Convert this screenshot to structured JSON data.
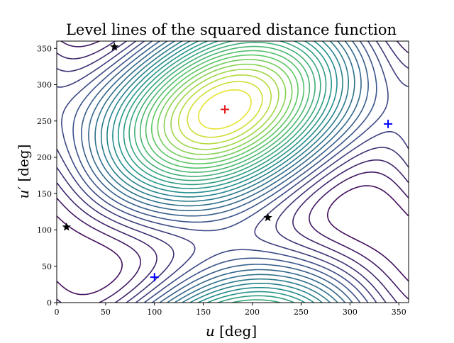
{
  "chart_data": {
    "type": "contour",
    "title": "Level lines of the squared distance function",
    "xlabel": "u [deg]",
    "xlabel_var": "u",
    "xlabel_unit": " [deg]",
    "ylabel": "u′ [deg]",
    "ylabel_var": "u′",
    "ylabel_unit": " [deg]",
    "xlim": [
      0,
      360
    ],
    "ylim": [
      0,
      360
    ],
    "xticks": [
      0,
      50,
      100,
      150,
      200,
      250,
      300,
      350
    ],
    "yticks": [
      0,
      50,
      100,
      150,
      200,
      250,
      300,
      350
    ],
    "colormap": [
      "#440154",
      "#3b528b",
      "#21918c",
      "#5ec962",
      "#fde725"
    ],
    "maximum_center": [
      172,
      266
    ],
    "minimum_centers": [
      [
        100,
        35
      ],
      [
        339,
        246
      ]
    ],
    "level_count": 26,
    "markers": {
      "red_plus": [
        [
          172,
          266
        ]
      ],
      "blue_plus": [
        [
          100,
          35
        ],
        [
          339,
          246
        ]
      ],
      "black_star": [
        [
          59,
          352
        ],
        [
          10,
          104
        ],
        [
          216,
          117
        ]
      ]
    },
    "colors": {
      "red_plus": "#e31a1c",
      "blue_plus": "#0000ff",
      "black_star": "#000000"
    }
  }
}
